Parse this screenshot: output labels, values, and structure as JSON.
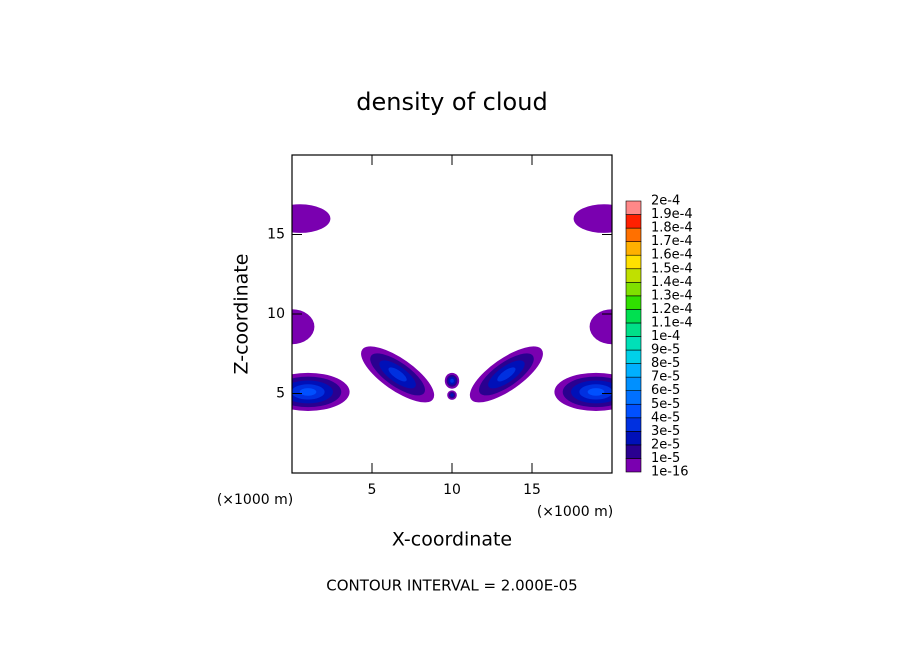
{
  "chart_data": {
    "type": "contour",
    "title": "density of cloud",
    "x_label": "X-coordinate",
    "y_label": "Z-coordinate",
    "x_unit": "(×1000 m)",
    "y_unit": "(×1000 m)",
    "footer": "CONTOUR INTERVAL = 2.000E-05",
    "xlim": [
      0,
      20
    ],
    "ylim": [
      0,
      20
    ],
    "xticks": [
      5,
      10,
      15
    ],
    "yticks": [
      5,
      10,
      15
    ],
    "blobs": [
      {
        "x": 0.5,
        "z": 16,
        "rx": 1.9,
        "rz": 0.9,
        "angle": 0,
        "level": 0
      },
      {
        "x": 19.5,
        "z": 16,
        "rx": 1.9,
        "rz": 0.9,
        "angle": 0,
        "level": 0
      },
      {
        "x": 0,
        "z": 9.2,
        "rx": 1.4,
        "rz": 1.1,
        "angle": 0,
        "level": 0
      },
      {
        "x": 20,
        "z": 9.2,
        "rx": 1.4,
        "rz": 1.1,
        "angle": 0,
        "level": 0
      },
      {
        "x": 1,
        "z": 5.1,
        "rx": 2.6,
        "rz": 1.2,
        "angle": 0,
        "level": 4
      },
      {
        "x": 19,
        "z": 5.1,
        "rx": 2.6,
        "rz": 1.2,
        "angle": 0,
        "level": 4
      },
      {
        "x": 6.6,
        "z": 6.2,
        "rx": 2.7,
        "rz": 1.0,
        "angle": -35,
        "level": 3
      },
      {
        "x": 13.4,
        "z": 6.2,
        "rx": 2.7,
        "rz": 1.0,
        "angle": 35,
        "level": 3
      },
      {
        "x": 10,
        "z": 5.8,
        "rx": 0.45,
        "rz": 0.5,
        "angle": 0,
        "level": 3
      },
      {
        "x": 10,
        "z": 4.9,
        "rx": 0.3,
        "rz": 0.3,
        "angle": 0,
        "level": 2
      }
    ],
    "colorbar": {
      "ticks": [
        {
          "value": 1e-16,
          "label": "1e-16"
        },
        {
          "value": 1e-05,
          "label": "1e-5"
        },
        {
          "value": 2e-05,
          "label": "2e-5"
        },
        {
          "value": 3e-05,
          "label": "3e-5"
        },
        {
          "value": 4e-05,
          "label": "4e-5"
        },
        {
          "value": 5e-05,
          "label": "5e-5"
        },
        {
          "value": 6e-05,
          "label": "6e-5"
        },
        {
          "value": 7e-05,
          "label": "7e-5"
        },
        {
          "value": 8e-05,
          "label": "8e-5"
        },
        {
          "value": 9e-05,
          "label": "9e-5"
        },
        {
          "value": 0.0001,
          "label": "1e-4"
        },
        {
          "value": 0.00011,
          "label": "1.1e-4"
        },
        {
          "value": 0.00012,
          "label": "1.2e-4"
        },
        {
          "value": 0.00013,
          "label": "1.3e-4"
        },
        {
          "value": 0.00014,
          "label": "1.4e-4"
        },
        {
          "value": 0.00015,
          "label": "1.5e-4"
        },
        {
          "value": 0.00016,
          "label": "1.6e-4"
        },
        {
          "value": 0.00017,
          "label": "1.7e-4"
        },
        {
          "value": 0.00018,
          "label": "1.8e-4"
        },
        {
          "value": 0.00019,
          "label": "1.9e-4"
        },
        {
          "value": 0.0002,
          "label": "2e-4"
        }
      ],
      "colors": [
        "#7a00b0",
        "#2a0090",
        "#0010b8",
        "#0030e0",
        "#0050ff",
        "#0070ff",
        "#0090ff",
        "#00b0ff",
        "#00d0e8",
        "#00e0b8",
        "#00e088",
        "#00e050",
        "#30e000",
        "#80e000",
        "#c0e000",
        "#ffe000",
        "#ffb000",
        "#ff7000",
        "#ff2000",
        "#ff8888"
      ]
    }
  }
}
